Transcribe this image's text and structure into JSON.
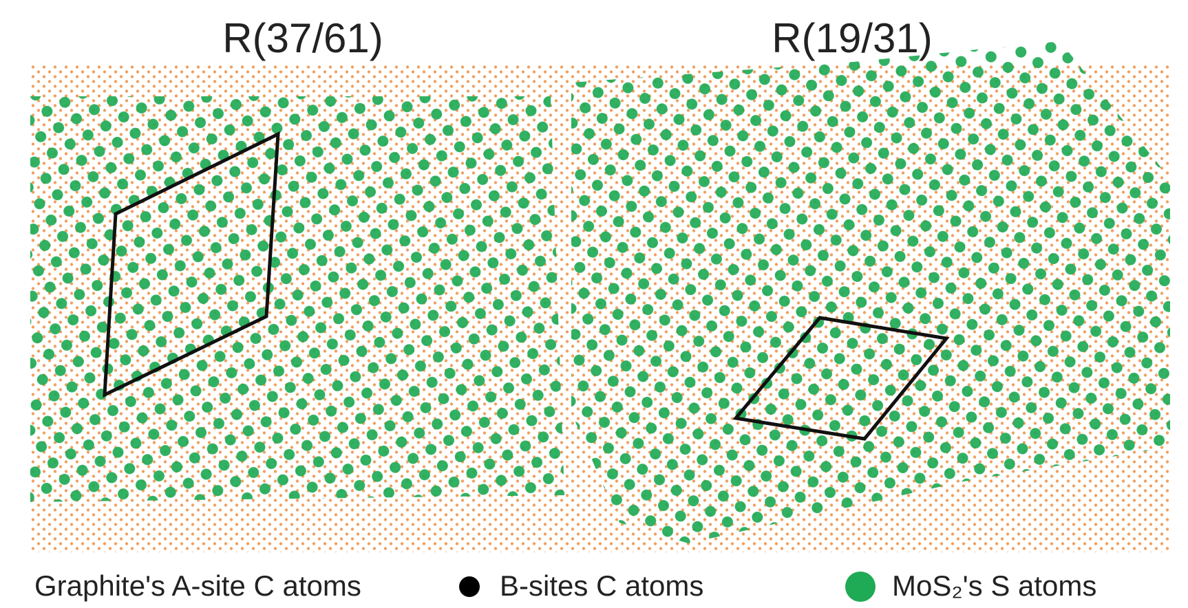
{
  "panels": [
    {
      "label": "R(37/61)"
    },
    {
      "label": "R(19/31)"
    }
  ],
  "legend": [
    {
      "label": "Graphite's A-site C atoms"
    },
    {
      "label": "B-sites C atoms"
    },
    {
      "label": "MoS₂'s S atoms"
    }
  ]
}
